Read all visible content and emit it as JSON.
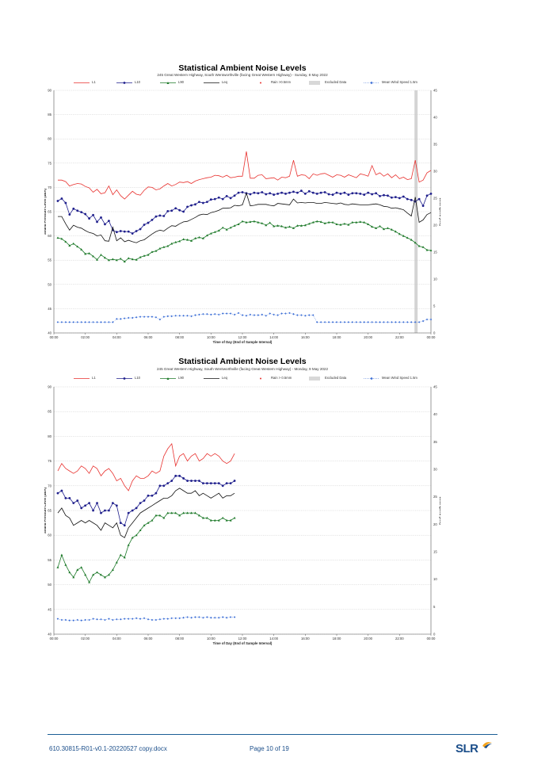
{
  "charts": [
    {
      "title": "Statistical Ambient Noise Levels",
      "subtitle": "245 Great Western Highway, South Wentworthville (facing Great Western Highway) - Sunday, 8 May 2022",
      "legend": [
        "L1",
        "L10",
        "L90",
        "Leq",
        "Rain >0.5mm",
        "Excluded Data",
        "Mean Wind Speed 1.5m"
      ],
      "ylabel": "Sound Pressure Level (dBA)",
      "ylabel2": "Wind speed (m/s)",
      "xlabel": "Time of Day (End of Sample Interval)",
      "yticks": [
        "40",
        "45",
        "50",
        "55",
        "60",
        "65",
        "70",
        "75",
        "80",
        "85",
        "90"
      ],
      "y2ticks": [
        "0",
        "5",
        "10",
        "15",
        "20",
        "25",
        "30",
        "35",
        "40",
        "45"
      ],
      "xticks": [
        "00:00",
        "02:00",
        "04:00",
        "06:00",
        "08:00",
        "10:00",
        "12:00",
        "14:00",
        "16:00",
        "18:00",
        "20:00",
        "22:00",
        "00:00"
      ]
    },
    {
      "title": "Statistical Ambient Noise Levels",
      "subtitle": "245 Great Western Highway, South Wentworthville (facing Great Western Highway) - Monday, 9 May 2022",
      "legend": [
        "L1",
        "L10",
        "L90",
        "Leq",
        "Rain > 0.5mm",
        "Excluded Data",
        "Mean Wind Speed 1.5m"
      ],
      "ylabel": "Sound Pressure Level (dBA)",
      "ylabel2": "Wind speed (m/s)",
      "xlabel": "Time of Day (End of Sample Interval)",
      "yticks": [
        "40",
        "45",
        "50",
        "55",
        "60",
        "65",
        "70",
        "75",
        "80",
        "85",
        "90"
      ],
      "y2ticks": [
        "0",
        "5",
        "10",
        "15",
        "20",
        "25",
        "30",
        "35",
        "40",
        "45"
      ],
      "xticks": [
        "00:00",
        "02:00",
        "04:00",
        "06:00",
        "08:00",
        "10:00",
        "12:00",
        "14:00",
        "16:00",
        "18:00",
        "20:00",
        "22:00",
        "00:00"
      ]
    }
  ],
  "chart_data": [
    {
      "type": "line",
      "title": "Statistical Ambient Noise Levels",
      "subtitle": "245 Great Western Highway, South Wentworthville (facing Great Western Highway) - Sunday, 8 May 2022",
      "xlabel": "Time of Day (End of Sample Interval)",
      "ylabel": "Sound Pressure Level (dBA)",
      "y2label": "Wind speed (m/s)",
      "xlim_hours": [
        0,
        24
      ],
      "ylim": [
        40,
        90
      ],
      "y2lim": [
        0,
        45
      ],
      "grid": true,
      "legend_position": "top",
      "excluded_hours": [
        22.95,
        23.15
      ],
      "x_hours": [
        0.25,
        0.5,
        0.75,
        1,
        1.25,
        1.5,
        1.75,
        2,
        2.25,
        2.5,
        2.75,
        3,
        3.25,
        3.5,
        3.75,
        4,
        4.25,
        4.5,
        4.75,
        5,
        5.25,
        5.5,
        5.75,
        6,
        6.25,
        6.5,
        6.75,
        7,
        7.25,
        7.5,
        7.75,
        8,
        8.25,
        8.5,
        8.75,
        9,
        9.25,
        9.5,
        9.75,
        10,
        10.25,
        10.5,
        10.75,
        11,
        11.25,
        11.5,
        11.75,
        12,
        12.25,
        12.5,
        12.75,
        13,
        13.25,
        13.5,
        13.75,
        14,
        14.25,
        14.5,
        14.75,
        15,
        15.25,
        15.5,
        15.75,
        16,
        16.25,
        16.5,
        16.75,
        17,
        17.25,
        17.5,
        17.75,
        18,
        18.25,
        18.5,
        18.75,
        19,
        19.25,
        19.5,
        19.75,
        20,
        20.25,
        20.5,
        20.75,
        21,
        21.25,
        21.5,
        21.75,
        22,
        22.25,
        22.5,
        22.75,
        23,
        23.25,
        23.5,
        23.75,
        24
      ],
      "series": [
        {
          "name": "L1",
          "color": "#e8312e",
          "marker": "none",
          "axis": "left",
          "values": [
            71.5,
            71.5,
            71.2,
            70.3,
            70.6,
            70.8,
            70.7,
            70.2,
            69.9,
            69.0,
            69.6,
            68.7,
            68.9,
            70.3,
            68.5,
            69.5,
            68.3,
            67.6,
            68.4,
            69.2,
            68.6,
            68.4,
            69.4,
            70.1,
            70.0,
            69.5,
            69.7,
            70.3,
            70.8,
            70.3,
            70.6,
            71.1,
            71.0,
            71.2,
            70.8,
            71.3,
            71.6,
            71.8,
            72.0,
            72.1,
            72.5,
            72.4,
            72.1,
            72.5,
            72.0,
            72.1,
            72.3,
            72.3,
            77.4,
            71.9,
            71.9,
            72.5,
            72.6,
            71.8,
            71.9,
            72.0,
            71.5,
            72.1,
            72.0,
            72.3,
            75.6,
            72.3,
            72.6,
            72.5,
            71.8,
            72.8,
            72.5,
            72.8,
            72.9,
            72.5,
            72.1,
            72.6,
            72.5,
            72.1,
            72.6,
            72.3,
            72.0,
            72.8,
            72.6,
            72.3,
            74.5,
            72.6,
            73.0,
            72.3,
            72.8,
            72.0,
            72.6,
            71.8,
            72.1,
            71.6,
            71.8,
            75.6,
            71.1,
            71.5,
            73.0,
            73.5
          ]
        },
        {
          "name": "L10",
          "color": "#1f1f8c",
          "marker": "circle",
          "axis": "left",
          "values": [
            67.2,
            67.7,
            66.8,
            64.4,
            65.6,
            65.2,
            64.9,
            64.5,
            63.6,
            64.3,
            62.9,
            63.8,
            62.4,
            63.1,
            61.2,
            60.8,
            61.0,
            60.9,
            60.9,
            60.5,
            61.0,
            61.4,
            62.3,
            62.7,
            63.3,
            64.0,
            64.2,
            64.1,
            65.1,
            65.2,
            65.7,
            65.3,
            65.0,
            66.0,
            66.3,
            66.5,
            67.0,
            66.8,
            67.0,
            67.5,
            67.6,
            67.9,
            67.6,
            68.2,
            67.8,
            68.3,
            68.9,
            69.0,
            68.8,
            68.6,
            68.9,
            68.8,
            69.0,
            68.6,
            68.8,
            68.5,
            68.7,
            68.9,
            68.7,
            68.9,
            69.1,
            68.9,
            69.3,
            68.7,
            69.2,
            68.9,
            68.7,
            68.9,
            69.0,
            68.6,
            68.5,
            68.9,
            68.7,
            68.9,
            68.5,
            68.8,
            68.8,
            68.7,
            68.5,
            68.9,
            68.6,
            68.8,
            68.2,
            68.4,
            68.3,
            67.9,
            68.0,
            67.8,
            68.1,
            67.6,
            67.4,
            67.1,
            67.6,
            66.2,
            68.3,
            68.7
          ]
        },
        {
          "name": "Leq",
          "color": "#111111",
          "marker": "none",
          "axis": "left",
          "values": [
            64.0,
            64.0,
            62.5,
            61.2,
            62.2,
            61.8,
            61.6,
            61.1,
            60.7,
            60.5,
            60.0,
            60.2,
            59.0,
            58.9,
            61.8,
            59.0,
            59.6,
            58.8,
            59.1,
            58.8,
            58.6,
            59.0,
            59.2,
            59.8,
            60.4,
            60.9,
            61.2,
            61.0,
            61.6,
            62.1,
            62.0,
            62.5,
            62.9,
            63.0,
            63.4,
            63.8,
            64.3,
            64.5,
            64.4,
            64.8,
            65.0,
            65.3,
            65.7,
            65.7,
            65.8,
            66.3,
            66.2,
            66.4,
            68.8,
            66.2,
            66.3,
            66.5,
            66.5,
            66.5,
            66.3,
            66.2,
            66.7,
            66.6,
            66.5,
            66.4,
            67.6,
            66.8,
            66.9,
            66.8,
            66.9,
            66.9,
            66.7,
            66.7,
            66.9,
            66.8,
            66.7,
            66.6,
            66.8,
            66.5,
            66.4,
            66.6,
            66.5,
            66.4,
            66.4,
            66.4,
            66.5,
            66.6,
            66.4,
            66.1,
            66.0,
            65.7,
            65.8,
            65.6,
            65.4,
            64.7,
            64.1,
            68.0,
            62.8,
            63.3,
            64.4,
            64.8
          ]
        },
        {
          "name": "L90",
          "color": "#1e7a2a",
          "marker": "triangle",
          "axis": "left",
          "values": [
            59.6,
            59.4,
            58.8,
            58.0,
            58.4,
            57.8,
            57.2,
            56.3,
            56.4,
            55.8,
            55.1,
            56.1,
            55.5,
            55.0,
            55.2,
            55.0,
            55.3,
            54.7,
            55.4,
            55.2,
            55.1,
            55.6,
            55.9,
            56.1,
            56.7,
            56.9,
            57.4,
            57.7,
            57.9,
            58.4,
            58.7,
            58.9,
            59.3,
            59.2,
            59.0,
            59.5,
            59.7,
            59.5,
            60.1,
            60.5,
            60.8,
            61.1,
            61.7,
            61.3,
            61.7,
            62.1,
            62.4,
            63.0,
            62.8,
            62.9,
            63.0,
            62.8,
            62.6,
            62.2,
            62.7,
            62.0,
            62.1,
            62.0,
            61.7,
            61.9,
            61.6,
            62.1,
            62.1,
            62.2,
            62.5,
            62.8,
            63.0,
            62.9,
            62.6,
            62.8,
            62.8,
            62.4,
            62.3,
            62.5,
            62.3,
            62.8,
            62.8,
            62.9,
            62.8,
            62.4,
            61.9,
            61.6,
            62.0,
            61.4,
            61.6,
            61.3,
            60.9,
            60.4,
            60.0,
            59.6,
            59.2,
            58.6,
            57.9,
            57.7,
            57.1,
            57.0
          ]
        },
        {
          "name": "Mean Wind Speed 1.5m",
          "color": "#3d6fd6",
          "marker": "diamond",
          "axis": "right",
          "values": [
            2.0,
            2.0,
            2.0,
            2.0,
            2.0,
            2.0,
            2.0,
            2.0,
            2.0,
            2.0,
            2.0,
            2.0,
            2.0,
            2.0,
            2.0,
            2.6,
            2.6,
            2.7,
            2.8,
            2.8,
            2.9,
            3.0,
            3.0,
            3.0,
            3.0,
            2.9,
            2.5,
            3.0,
            3.1,
            3.1,
            3.2,
            3.2,
            3.2,
            3.2,
            3.1,
            3.3,
            3.4,
            3.5,
            3.5,
            3.4,
            3.5,
            3.4,
            3.6,
            3.6,
            3.6,
            3.4,
            3.7,
            3.3,
            3.2,
            3.4,
            3.3,
            3.3,
            3.4,
            3.2,
            3.6,
            3.4,
            3.3,
            3.6,
            3.6,
            3.7,
            3.5,
            3.3,
            3.3,
            3.2,
            3.3,
            3.3,
            2.0,
            2.0,
            2.0,
            2.0,
            2.0,
            2.0,
            2.0,
            2.0,
            2.0,
            2.0,
            2.0,
            2.0,
            2.0,
            2.0,
            2.0,
            2.0,
            2.0,
            2.0,
            2.0,
            2.0,
            2.0,
            2.0,
            2.0,
            2.0,
            2.0,
            2.0,
            2.0,
            2.2,
            2.5,
            2.5
          ]
        }
      ]
    },
    {
      "type": "line",
      "title": "Statistical Ambient Noise Levels",
      "subtitle": "245 Great Western Highway, South Wentworthville (facing Great Western Highway) - Monday, 9 May 2022",
      "xlabel": "Time of Day (End of Sample Interval)",
      "ylabel": "Sound Pressure Level (dBA)",
      "y2label": "Wind speed (m/s)",
      "xlim_hours": [
        0,
        24
      ],
      "ylim": [
        40,
        90
      ],
      "y2lim": [
        0,
        45
      ],
      "grid": true,
      "legend_position": "top",
      "x_hours": [
        0.25,
        0.5,
        0.75,
        1,
        1.25,
        1.5,
        1.75,
        2,
        2.25,
        2.5,
        2.75,
        3,
        3.25,
        3.5,
        3.75,
        4,
        4.25,
        4.5,
        4.75,
        5,
        5.25,
        5.5,
        5.75,
        6,
        6.25,
        6.5,
        6.75,
        7,
        7.25,
        7.5,
        7.75,
        8,
        8.25,
        8.5,
        8.75,
        9,
        9.25,
        9.5,
        9.75,
        10,
        10.25,
        10.5,
        10.75,
        11,
        11.25,
        11.5
      ],
      "series": [
        {
          "name": "L1",
          "color": "#e8312e",
          "marker": "none",
          "axis": "left",
          "values": [
            73.0,
            74.5,
            73.5,
            73.0,
            72.5,
            73.0,
            74.0,
            73.5,
            72.5,
            74.0,
            73.5,
            72.0,
            73.0,
            73.5,
            72.5,
            71.0,
            71.5,
            70.0,
            69.0,
            71.0,
            72.0,
            71.5,
            71.5,
            72.0,
            73.0,
            72.5,
            73.0,
            76.0,
            77.5,
            78.5,
            74.0,
            76.0,
            76.5,
            75.0,
            76.0,
            76.5,
            75.0,
            75.5,
            76.5,
            76.0,
            76.5,
            76.0,
            75.0,
            74.5,
            75.0,
            76.5
          ]
        },
        {
          "name": "L10",
          "color": "#1f1f8c",
          "marker": "circle",
          "axis": "left",
          "values": [
            68.5,
            69.0,
            67.5,
            67.5,
            66.5,
            67.0,
            65.5,
            66.0,
            66.5,
            65.0,
            66.5,
            64.5,
            65.0,
            65.0,
            66.5,
            66.0,
            62.5,
            62.0,
            64.5,
            65.0,
            65.5,
            66.5,
            67.0,
            68.0,
            68.0,
            68.5,
            70.0,
            70.0,
            70.5,
            71.0,
            72.0,
            72.0,
            71.5,
            71.0,
            71.0,
            71.0,
            71.0,
            70.5,
            70.5,
            70.5,
            70.5,
            70.5,
            70.0,
            70.5,
            70.5,
            71.0
          ]
        },
        {
          "name": "Leq",
          "color": "#111111",
          "marker": "none",
          "axis": "left",
          "values": [
            64.5,
            65.5,
            64.0,
            63.5,
            62.0,
            62.5,
            63.0,
            62.5,
            63.0,
            62.5,
            62.0,
            61.0,
            62.5,
            62.0,
            61.5,
            62.5,
            60.0,
            59.5,
            61.5,
            62.5,
            63.5,
            64.5,
            65.0,
            65.5,
            66.0,
            66.5,
            67.0,
            67.5,
            67.5,
            68.0,
            69.0,
            69.5,
            69.0,
            68.5,
            68.5,
            69.0,
            68.0,
            68.5,
            68.0,
            67.5,
            68.0,
            68.5,
            67.5,
            68.0,
            68.0,
            68.5
          ]
        },
        {
          "name": "L90",
          "color": "#1e7a2a",
          "marker": "triangle",
          "axis": "left",
          "values": [
            53.5,
            56.0,
            54.0,
            52.5,
            51.5,
            53.0,
            53.5,
            52.0,
            50.5,
            52.0,
            52.5,
            52.0,
            51.5,
            52.0,
            53.0,
            54.5,
            56.0,
            55.5,
            58.0,
            59.5,
            60.0,
            61.0,
            62.0,
            62.5,
            63.0,
            64.0,
            64.0,
            63.5,
            64.5,
            64.5,
            64.5,
            64.0,
            64.5,
            64.5,
            64.5,
            64.5,
            64.0,
            63.5,
            63.5,
            63.0,
            63.0,
            63.0,
            63.5,
            63.0,
            63.0,
            63.5
          ]
        },
        {
          "name": "Mean Wind Speed 1.5m",
          "color": "#3d6fd6",
          "marker": "diamond",
          "axis": "right",
          "values": [
            2.8,
            2.6,
            2.6,
            2.5,
            2.5,
            2.6,
            2.5,
            2.6,
            2.6,
            2.8,
            2.7,
            2.7,
            2.6,
            2.8,
            2.6,
            2.7,
            2.7,
            2.8,
            2.8,
            2.8,
            2.9,
            2.8,
            2.9,
            2.7,
            2.6,
            2.6,
            2.7,
            2.8,
            2.8,
            2.9,
            2.9,
            2.9,
            3.0,
            3.1,
            3.0,
            3.1,
            3.1,
            3.0,
            3.1,
            3.0,
            3.0,
            3.0,
            3.1,
            3.0,
            3.1,
            3.1
          ]
        }
      ]
    }
  ],
  "footer": {
    "doc": "610.30815-R01-v0.1-20220527 copy.docx",
    "page": "Page 10 of 19",
    "logo": "SLR"
  }
}
